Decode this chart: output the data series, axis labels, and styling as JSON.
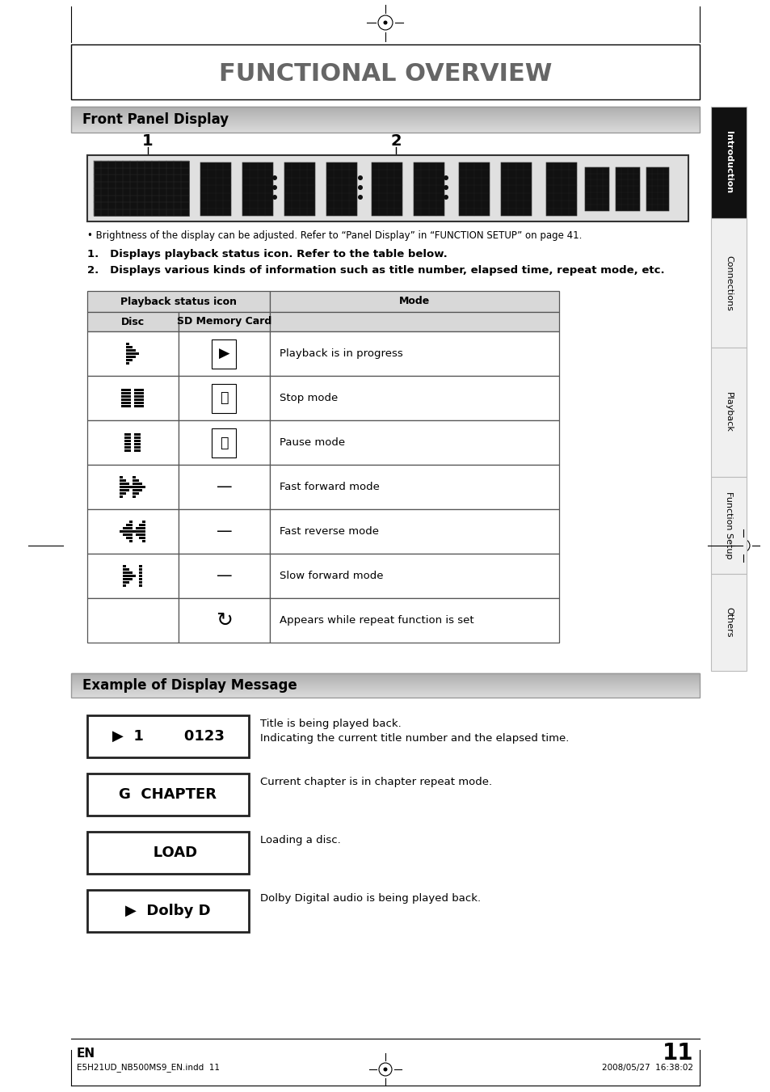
{
  "title": "FUNCTIONAL OVERVIEW",
  "section1_title": "Front Panel Display",
  "section2_title": "Example of Display Message",
  "brightness_note": "• Brightness of the display can be adjusted. Refer to “Panel Display” in “FUNCTION SETUP” on page 41.",
  "note1": "1.   Displays playback status icon. Refer to the table below.",
  "note2": "2.   Displays various kinds of information such as title number, elapsed time, repeat mode, etc.",
  "table_col_header1": "Playback status icon",
  "table_col_header2": "Mode",
  "table_sub1": "Disc",
  "table_sub2": "SD Memory Card",
  "table_modes": [
    "Playback is in progress",
    "Stop mode",
    "Pause mode",
    "Fast forward mode",
    "Fast reverse mode",
    "Slow forward mode",
    "Appears while repeat function is set"
  ],
  "display_examples": [
    {
      "text": "▶  1        0123",
      "desc1": "Title is being played back.",
      "desc2": "Indicating the current title number and the elapsed time."
    },
    {
      "text": "G  CHAPTER",
      "desc1": "Current chapter is in chapter repeat mode.",
      "desc2": ""
    },
    {
      "text": "   LOAD",
      "desc1": "Loading a disc.",
      "desc2": ""
    },
    {
      "text": "▶  Dolby D",
      "desc1": "Dolby Digital audio is being played back.",
      "desc2": ""
    }
  ],
  "sidebar_labels": [
    "Introduction",
    "Connections",
    "Playback",
    "Function Setup",
    "Others"
  ],
  "sidebar_colors": [
    "#111111",
    "#f0f0f0",
    "#f0f0f0",
    "#f0f0f0",
    "#f0f0f0"
  ],
  "sidebar_text_colors": [
    "white",
    "black",
    "black",
    "black",
    "black"
  ],
  "footer_left": "EN",
  "footer_file": "E5H21UD_NB500MS9_EN.indd  11",
  "footer_date": "2008/05/27  16:38:02",
  "page_num": "11"
}
